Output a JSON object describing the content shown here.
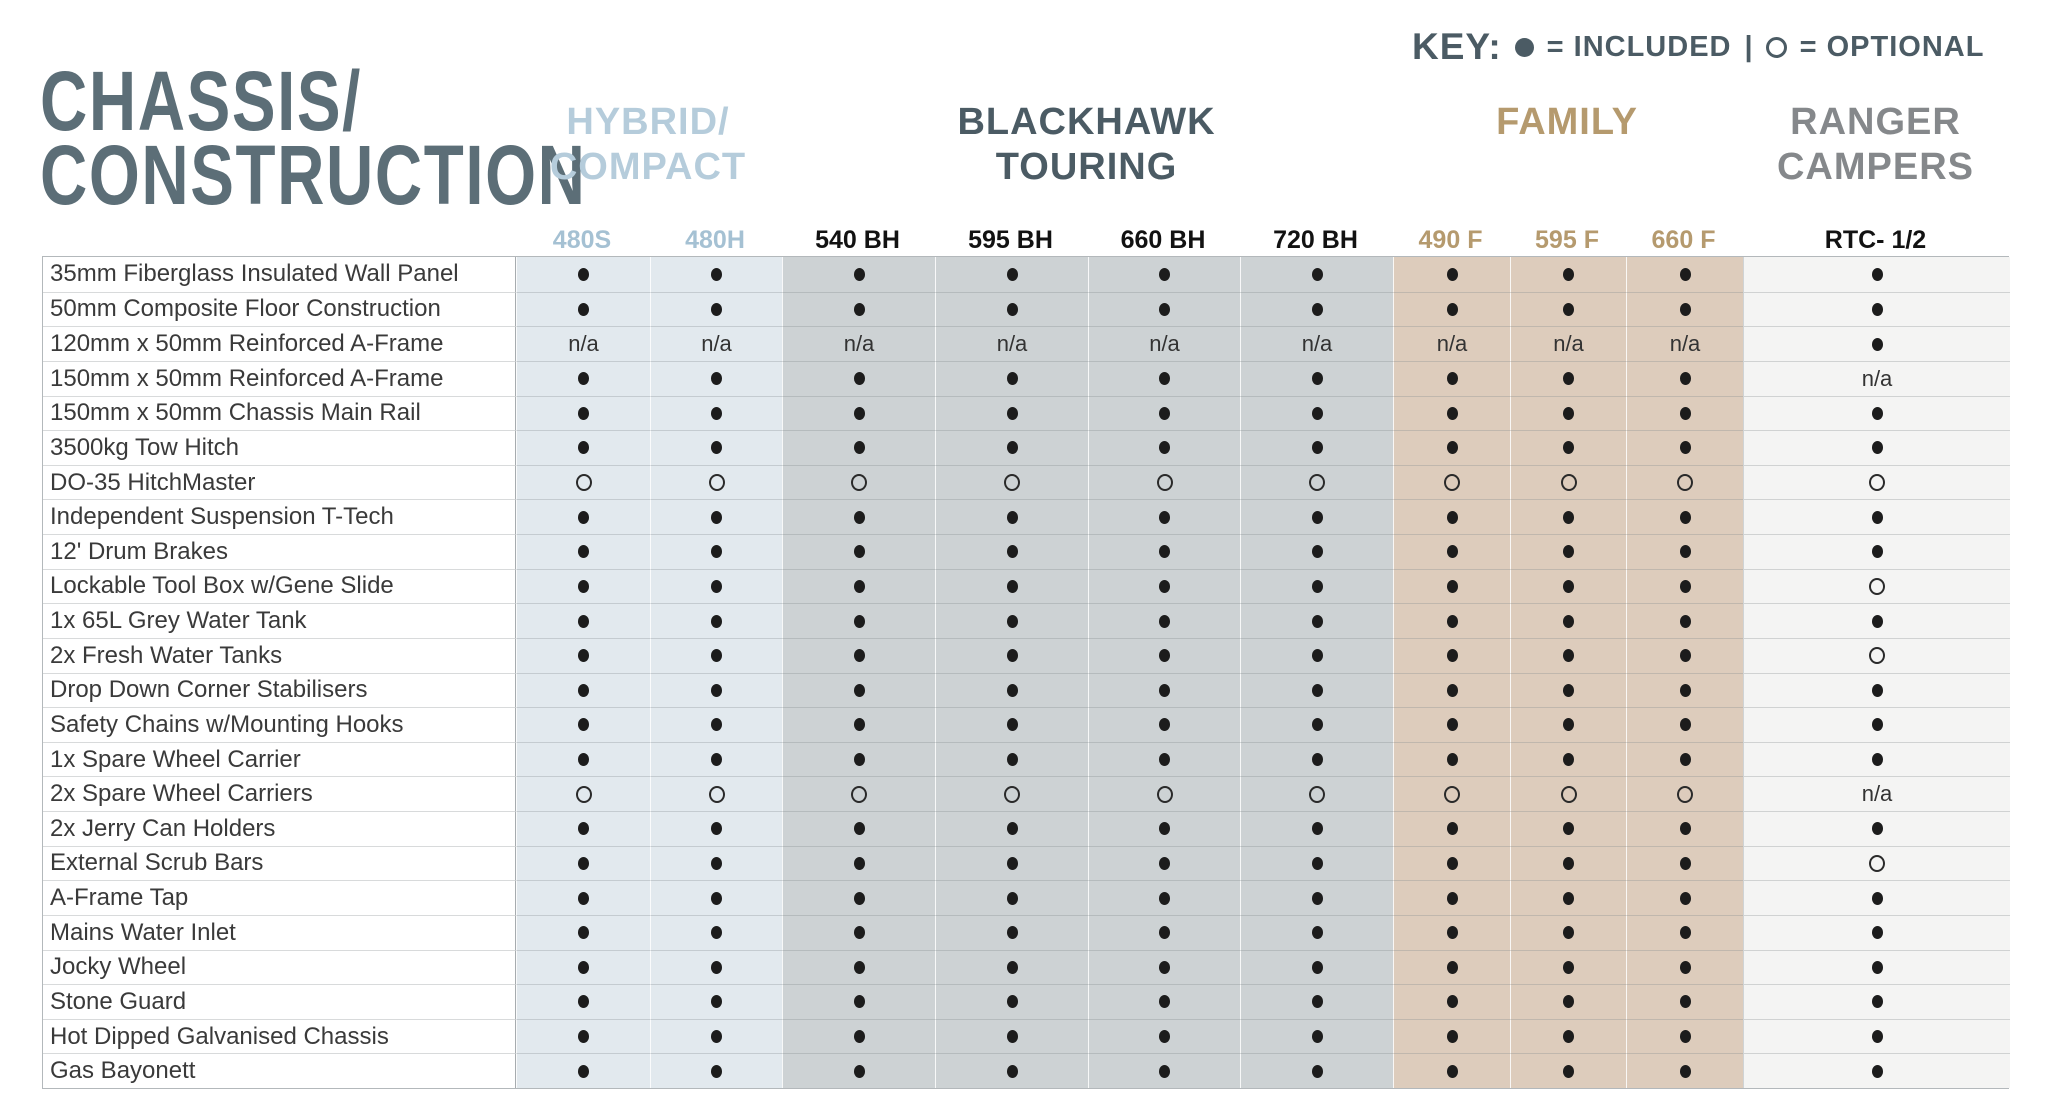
{
  "page_title": {
    "line1": "CHASSIS/",
    "line2": "CONSTRUCTION"
  },
  "key": {
    "label": "KEY:",
    "included_label": "= INCLUDED",
    "divider": "|",
    "optional_label": "= OPTIONAL"
  },
  "palette": {
    "title_color": "#5c6e77",
    "key_color": "#4b5b64",
    "hybrid_text": "#b5ccdb",
    "blackhawk_text": "#4b5b64",
    "family_text": "#b59a6e",
    "ranger_text": "#85888b",
    "hybrid_cell_bg": "#e2e9ee",
    "blackhawk_cell_bg": "#cdd2d4",
    "family_cell_bg": "#ddccbc",
    "ranger_cell_bg": "#f4f4f3",
    "dot_color": "#1c1c1c"
  },
  "column_groups": [
    {
      "id": "hybrid",
      "line1": "HYBRID/",
      "line2": "COMPACT"
    },
    {
      "id": "blackhawk",
      "line1": "BLACKHAWK",
      "line2": "TOURING"
    },
    {
      "id": "family",
      "line1": "FAMILY",
      "line2": ""
    },
    {
      "id": "ranger",
      "line1": "RANGER",
      "line2": "CAMPERS"
    }
  ],
  "columns": [
    {
      "label": "480S",
      "group": "hybrid"
    },
    {
      "label": "480H",
      "group": "hybrid"
    },
    {
      "label": "540 BH",
      "group": "blackhawk"
    },
    {
      "label": "595 BH",
      "group": "blackhawk"
    },
    {
      "label": "660 BH",
      "group": "blackhawk"
    },
    {
      "label": "720 BH",
      "group": "blackhawk"
    },
    {
      "label": "490 F",
      "group": "family"
    },
    {
      "label": "595 F",
      "group": "family"
    },
    {
      "label": "660 F",
      "group": "family"
    },
    {
      "label": "RTC- 1/2",
      "group": "ranger"
    }
  ],
  "na_label": "n/a",
  "rows": [
    {
      "feature": "35mm Fiberglass Insulated Wall Panel",
      "values": [
        "included",
        "included",
        "included",
        "included",
        "included",
        "included",
        "included",
        "included",
        "included",
        "included"
      ]
    },
    {
      "feature": "50mm Composite Floor Construction",
      "values": [
        "included",
        "included",
        "included",
        "included",
        "included",
        "included",
        "included",
        "included",
        "included",
        "included"
      ]
    },
    {
      "feature": "120mm x 50mm Reinforced A-Frame",
      "values": [
        "na",
        "na",
        "na",
        "na",
        "na",
        "na",
        "na",
        "na",
        "na",
        "included"
      ]
    },
    {
      "feature": "150mm x 50mm Reinforced A-Frame",
      "values": [
        "included",
        "included",
        "included",
        "included",
        "included",
        "included",
        "included",
        "included",
        "included",
        "na"
      ]
    },
    {
      "feature": "150mm x 50mm Chassis Main Rail",
      "values": [
        "included",
        "included",
        "included",
        "included",
        "included",
        "included",
        "included",
        "included",
        "included",
        "included"
      ]
    },
    {
      "feature": "3500kg Tow Hitch",
      "values": [
        "included",
        "included",
        "included",
        "included",
        "included",
        "included",
        "included",
        "included",
        "included",
        "included"
      ]
    },
    {
      "feature": "DO-35 HitchMaster",
      "values": [
        "optional",
        "optional",
        "optional",
        "optional",
        "optional",
        "optional",
        "optional",
        "optional",
        "optional",
        "optional"
      ]
    },
    {
      "feature": "Independent Suspension T-Tech",
      "values": [
        "included",
        "included",
        "included",
        "included",
        "included",
        "included",
        "included",
        "included",
        "included",
        "included"
      ]
    },
    {
      "feature": "12' Drum Brakes",
      "values": [
        "included",
        "included",
        "included",
        "included",
        "included",
        "included",
        "included",
        "included",
        "included",
        "included"
      ]
    },
    {
      "feature": "Lockable Tool Box w/Gene Slide",
      "values": [
        "included",
        "included",
        "included",
        "included",
        "included",
        "included",
        "included",
        "included",
        "included",
        "optional"
      ]
    },
    {
      "feature": "1x 65L Grey Water Tank",
      "values": [
        "included",
        "included",
        "included",
        "included",
        "included",
        "included",
        "included",
        "included",
        "included",
        "included"
      ]
    },
    {
      "feature": "2x Fresh Water Tanks",
      "values": [
        "included",
        "included",
        "included",
        "included",
        "included",
        "included",
        "included",
        "included",
        "included",
        "optional"
      ]
    },
    {
      "feature": "Drop Down Corner Stabilisers",
      "values": [
        "included",
        "included",
        "included",
        "included",
        "included",
        "included",
        "included",
        "included",
        "included",
        "included"
      ]
    },
    {
      "feature": "Safety Chains w/Mounting Hooks",
      "values": [
        "included",
        "included",
        "included",
        "included",
        "included",
        "included",
        "included",
        "included",
        "included",
        "included"
      ]
    },
    {
      "feature": "1x Spare Wheel Carrier",
      "values": [
        "included",
        "included",
        "included",
        "included",
        "included",
        "included",
        "included",
        "included",
        "included",
        "included"
      ]
    },
    {
      "feature": "2x Spare Wheel Carriers",
      "values": [
        "optional",
        "optional",
        "optional",
        "optional",
        "optional",
        "optional",
        "optional",
        "optional",
        "optional",
        "na"
      ]
    },
    {
      "feature": "2x Jerry Can Holders",
      "values": [
        "included",
        "included",
        "included",
        "included",
        "included",
        "included",
        "included",
        "included",
        "included",
        "included"
      ]
    },
    {
      "feature": "External Scrub Bars",
      "values": [
        "included",
        "included",
        "included",
        "included",
        "included",
        "included",
        "included",
        "included",
        "included",
        "optional"
      ]
    },
    {
      "feature": "A-Frame Tap",
      "values": [
        "included",
        "included",
        "included",
        "included",
        "included",
        "included",
        "included",
        "included",
        "included",
        "included"
      ]
    },
    {
      "feature": "Mains Water Inlet",
      "values": [
        "included",
        "included",
        "included",
        "included",
        "included",
        "included",
        "included",
        "included",
        "included",
        "included"
      ]
    },
    {
      "feature": "Jocky Wheel",
      "values": [
        "included",
        "included",
        "included",
        "included",
        "included",
        "included",
        "included",
        "included",
        "included",
        "included"
      ]
    },
    {
      "feature": "Stone Guard",
      "values": [
        "included",
        "included",
        "included",
        "included",
        "included",
        "included",
        "included",
        "included",
        "included",
        "included"
      ]
    },
    {
      "feature": "Hot Dipped Galvanised Chassis",
      "values": [
        "included",
        "included",
        "included",
        "included",
        "included",
        "included",
        "included",
        "included",
        "included",
        "included"
      ]
    },
    {
      "feature": "Gas Bayonett",
      "values": [
        "included",
        "included",
        "included",
        "included",
        "included",
        "included",
        "included",
        "included",
        "included",
        "included"
      ]
    }
  ]
}
